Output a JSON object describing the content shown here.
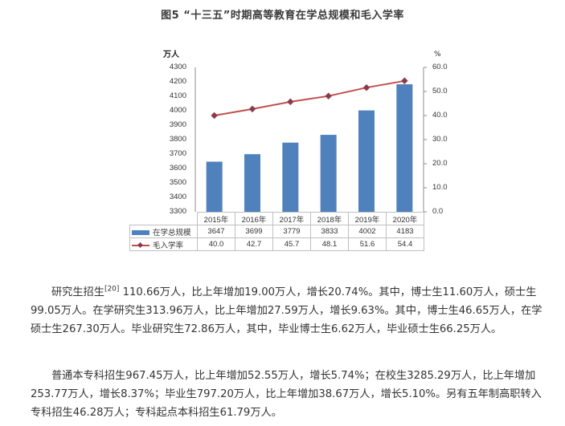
{
  "figure": {
    "title": "图5  “十三五”时期高等教育在学总规模和毛入学率",
    "left_unit": "万人",
    "right_unit": "%"
  },
  "chart_data": {
    "type": "bar",
    "title": "图5  “十三五”时期高等教育在学总规模和毛入学率",
    "categories": [
      "2015年",
      "2016年",
      "2017年",
      "2018年",
      "2019年",
      "2020年"
    ],
    "series": [
      {
        "name": "在学总规模",
        "type": "bar",
        "axis": "left",
        "color": "#4f81bd",
        "values": [
          3647,
          3699,
          3779,
          3833,
          4002,
          4183
        ],
        "display": [
          "3647",
          "3699",
          "3779",
          "3833",
          "4002",
          "4183"
        ]
      },
      {
        "name": "毛入学率",
        "type": "line",
        "axis": "right",
        "color": "#c0504d",
        "marker": "diamond",
        "values": [
          40.0,
          42.7,
          45.7,
          48.1,
          51.6,
          54.4
        ],
        "display": [
          "40.0",
          "42.7",
          "45.7",
          "48.1",
          "51.6",
          "54.4"
        ]
      }
    ],
    "xlabel": "",
    "ylabel": "万人",
    "ylabel_right": "%",
    "ylim": [
      3300,
      4300
    ],
    "ylim_right": [
      0,
      60
    ],
    "yticks": [
      "4300",
      "4200",
      "4100",
      "4000",
      "3900",
      "3800",
      "3700",
      "3600",
      "3500",
      "3400",
      "3300"
    ],
    "yticks_right": [
      "60.0",
      "50.0",
      "40.0",
      "30.0",
      "20.0",
      "10.0",
      "0.0"
    ],
    "grid": false,
    "legend_position": "data-table-bottom"
  },
  "paragraphs": [
    {
      "lead": "研究生招生",
      "ref": "[20]",
      "text": " 110.66万人，比上年增加19.00万人，增长20.74%。其中，博士生11.60万人，硕士生99.05万人。在学研究生313.96万人，比上年增加27.59万人，增长9.63%。其中，博士生46.65万人，在学硕士生267.30万人。毕业研究生72.86万人，其中，毕业博士生6.62万人，毕业硕士生66.25万人。"
    },
    {
      "lead": "普通本专科招生967.45万人，比上年增加52.55万人，增长5.74%；在校生3285.29万人，比上年增加253.77万人，增长8.37%；毕业生797.20万人，比上年增加38.67万人，增长5.10%。另有五年制高职转入专科招生46.28万人；专科起点本科招生61.79万人。",
      "ref": "",
      "text": ""
    }
  ]
}
